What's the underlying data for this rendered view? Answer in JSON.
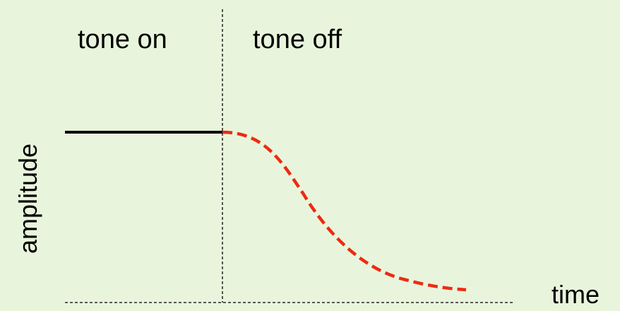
{
  "labels": {
    "tone_on": "tone on",
    "tone_off": "tone off",
    "y_axis": "amplitude",
    "x_axis": "time"
  },
  "colors": {
    "background": "#e8f5dc",
    "tone_on_line": "#000000",
    "tone_off_curve": "#ee2a12",
    "guides": "#000000"
  }
}
